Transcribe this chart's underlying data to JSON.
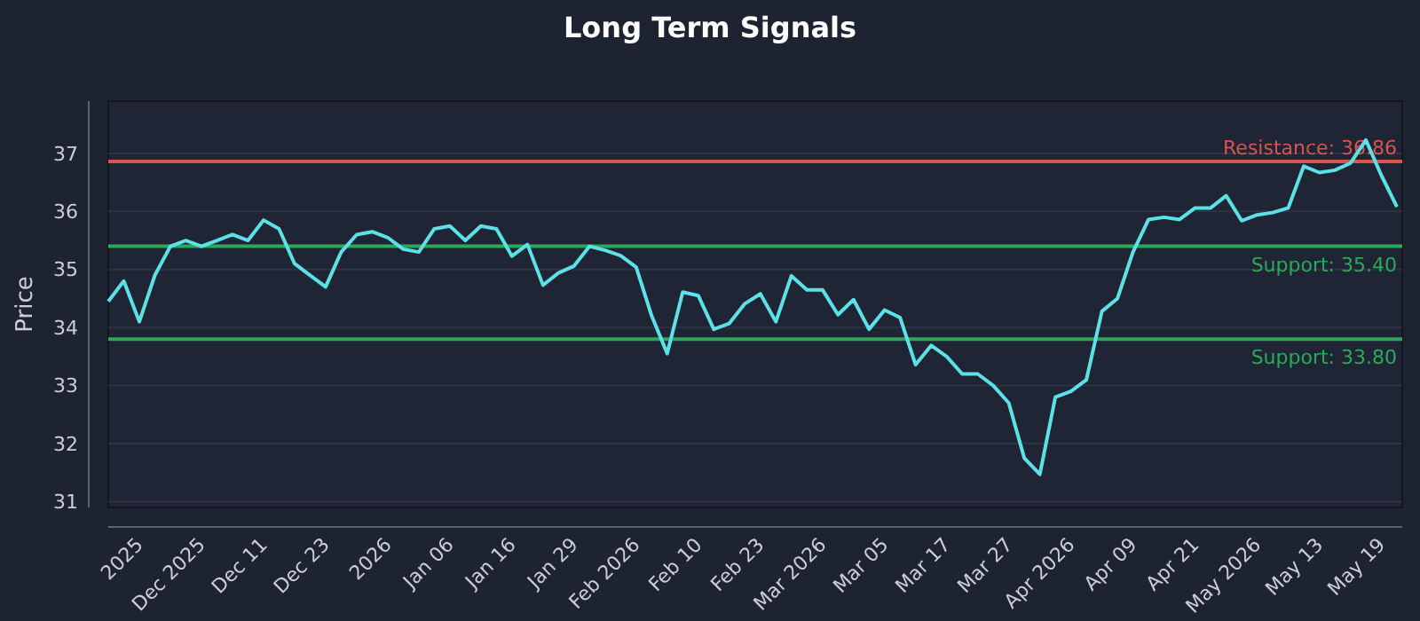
{
  "chart_data": {
    "type": "line",
    "title": "Long Term Signals",
    "ylabel": "Price",
    "categories": [
      null,
      null,
      "2025",
      null,
      null,
      null,
      "Dec 2025",
      null,
      null,
      null,
      "Dec 11",
      null,
      null,
      null,
      "Dec 23",
      null,
      null,
      null,
      "2026",
      null,
      null,
      null,
      "Jan 06",
      null,
      null,
      null,
      "Jan 16",
      null,
      null,
      null,
      "Jan 29",
      null,
      null,
      null,
      "Feb 2026",
      null,
      null,
      null,
      "Feb 10",
      null,
      null,
      null,
      "Feb 23",
      null,
      null,
      null,
      "Mar 2026",
      null,
      null,
      null,
      "Mar 05",
      null,
      null,
      null,
      "Mar 17",
      null,
      null,
      null,
      "Mar 27",
      null,
      null,
      null,
      "Apr 2026",
      null,
      null,
      null,
      "Apr 09",
      null,
      null,
      null,
      "Apr 21",
      null,
      null,
      null,
      "May 2026",
      null,
      null,
      null,
      "May 13",
      null,
      null,
      null,
      "May 19",
      null
    ],
    "series": [
      {
        "color": "#5ce1e6",
        "values": [
          34.45,
          34.8,
          34.1,
          34.9,
          35.4,
          35.5,
          35.4,
          35.5,
          35.6,
          35.5,
          35.85,
          35.7,
          35.1,
          34.9,
          34.7,
          35.3,
          35.6,
          35.65,
          35.55,
          35.35,
          35.3,
          35.7,
          35.75,
          35.5,
          35.75,
          35.7,
          35.23,
          35.43,
          34.73,
          34.94,
          35.06,
          35.4,
          35.33,
          35.24,
          35.04,
          34.2,
          33.55,
          34.61,
          34.55,
          33.97,
          34.07,
          34.41,
          34.58,
          34.1,
          34.89,
          34.65,
          34.65,
          34.22,
          34.48,
          33.97,
          34.3,
          34.17,
          33.36,
          33.69,
          33.5,
          33.2,
          33.2,
          33.0,
          32.7,
          31.75,
          31.47,
          32.8,
          32.9,
          33.1,
          34.28,
          34.5,
          35.3,
          35.86,
          35.9,
          35.86,
          36.06,
          36.06,
          36.27,
          35.84,
          35.94,
          35.98,
          36.06,
          36.78,
          36.67,
          36.71,
          36.83,
          37.23,
          36.62,
          36.08
        ]
      }
    ],
    "ylim": [
      30.9,
      37.9
    ],
    "yticks": [
      31,
      32,
      33,
      34,
      35,
      36,
      37
    ],
    "grid": "y",
    "ref_lines": [
      {
        "axis": "y",
        "value": 36.86,
        "label": "Resistance: 36.86",
        "color": "#d9534f"
      },
      {
        "axis": "y",
        "value": 35.4,
        "label": "Support: 35.40",
        "color": "#2ca85a"
      },
      {
        "axis": "y",
        "value": 33.8,
        "label": "Support: 33.80",
        "color": "#2ca85a"
      }
    ]
  }
}
